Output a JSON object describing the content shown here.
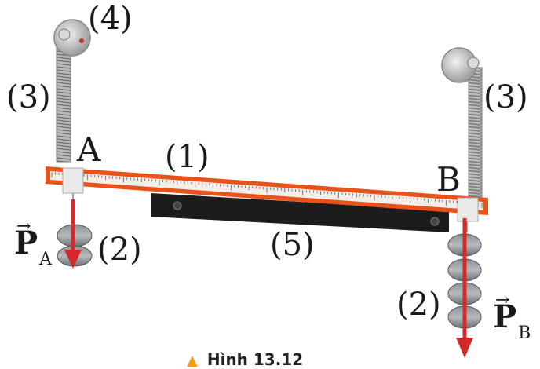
{
  "labels": {
    "label_4": "(4)",
    "label_3_left": "(3)",
    "label_3_right": "(3)",
    "label_1": "(1)",
    "label_5": "(5)",
    "label_2_left": "(2)",
    "label_2_right": "(2)",
    "point_a": "A",
    "point_b": "B"
  },
  "forces": {
    "left": {
      "symbol": "P",
      "subscript": "A"
    },
    "right": {
      "symbol": "P",
      "subscript": "B"
    }
  },
  "caption": {
    "text": "Hình 13.12"
  },
  "colors": {
    "ruler": "#e8531c",
    "force_arrow": "#d42a2a",
    "plate": "#1c1c1c",
    "spring": "#9a9a9a",
    "caption_icon": "#f39c12"
  }
}
